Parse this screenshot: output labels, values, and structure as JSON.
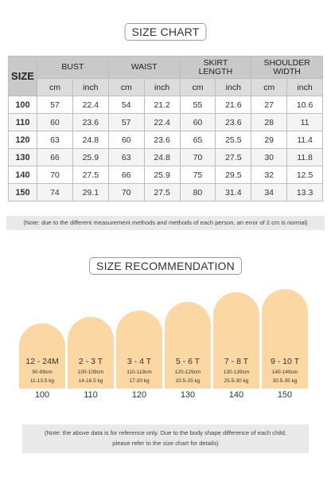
{
  "size_chart_title": "SIZE CHART",
  "headers": {
    "size": "SIZE",
    "bust": "BUST",
    "waist": "WAIST",
    "skirt_length": "SKIRT LENGTH",
    "shoulder_width": "SHOULDER WIDTH",
    "cm": "cm",
    "inch": "inch"
  },
  "rows": [
    {
      "size": "100",
      "bust_cm": "57",
      "bust_in": "22.4",
      "waist_cm": "54",
      "waist_in": "21.2",
      "skirt_cm": "55",
      "skirt_in": "21.6",
      "shoulder_cm": "27",
      "shoulder_in": "10.6"
    },
    {
      "size": "110",
      "bust_cm": "60",
      "bust_in": "23.6",
      "waist_cm": "57",
      "waist_in": "22.4",
      "skirt_cm": "60",
      "skirt_in": "23.6",
      "shoulder_cm": "28",
      "shoulder_in": "11"
    },
    {
      "size": "120",
      "bust_cm": "63",
      "bust_in": "24.8",
      "waist_cm": "60",
      "waist_in": "23.6",
      "skirt_cm": "65",
      "skirt_in": "25.5",
      "shoulder_cm": "29",
      "shoulder_in": "11.4"
    },
    {
      "size": "130",
      "bust_cm": "66",
      "bust_in": "25.9",
      "waist_cm": "63",
      "waist_in": "24.8",
      "skirt_cm": "70",
      "skirt_in": "27.5",
      "shoulder_cm": "30",
      "shoulder_in": "11.8"
    },
    {
      "size": "140",
      "bust_cm": "70",
      "bust_in": "27.5",
      "waist_cm": "66",
      "waist_in": "25.9",
      "skirt_cm": "75",
      "skirt_in": "29.5",
      "shoulder_cm": "32",
      "shoulder_in": "12.5"
    },
    {
      "size": "150",
      "bust_cm": "74",
      "bust_in": "29.1",
      "waist_cm": "70",
      "waist_in": "27.5",
      "skirt_cm": "80",
      "skirt_in": "31.4",
      "shoulder_cm": "34",
      "shoulder_in": "13.3"
    }
  ],
  "note_chart": "(Note: due to the different measurement methods and methods of each person, an error of 2 cm is normal)",
  "size_rec_title": "SIZE RECOMMENDATION",
  "recommendations": [
    {
      "age": "12 - 24M",
      "height": "90-99cm",
      "weight": "11-13.5 kg",
      "size": "100"
    },
    {
      "age": "2 - 3 T",
      "height": "100-109cm",
      "weight": "14-16.5 kg",
      "size": "110"
    },
    {
      "age": "3 - 4 T",
      "height": "110-119cm",
      "weight": "17-20 kg",
      "size": "120"
    },
    {
      "age": "5 - 6 T",
      "height": "120-129cm",
      "weight": "20.5-25 kg",
      "size": "130"
    },
    {
      "age": "7 - 8 T",
      "height": "130-139cm",
      "weight": "25.5-30 kg",
      "size": "140"
    },
    {
      "age": "9 - 10 T",
      "height": "140-149cm",
      "weight": "30.5-35 kg",
      "size": "150"
    }
  ],
  "note_rec_line1": "(Note: the above data is for reference only. Due to the body shape difference of each child,",
  "note_rec_line2": "please refer to the size chart for details)",
  "colors": {
    "arch_fill": "#fbd7a4",
    "header_fill": "#c9c9c9"
  }
}
